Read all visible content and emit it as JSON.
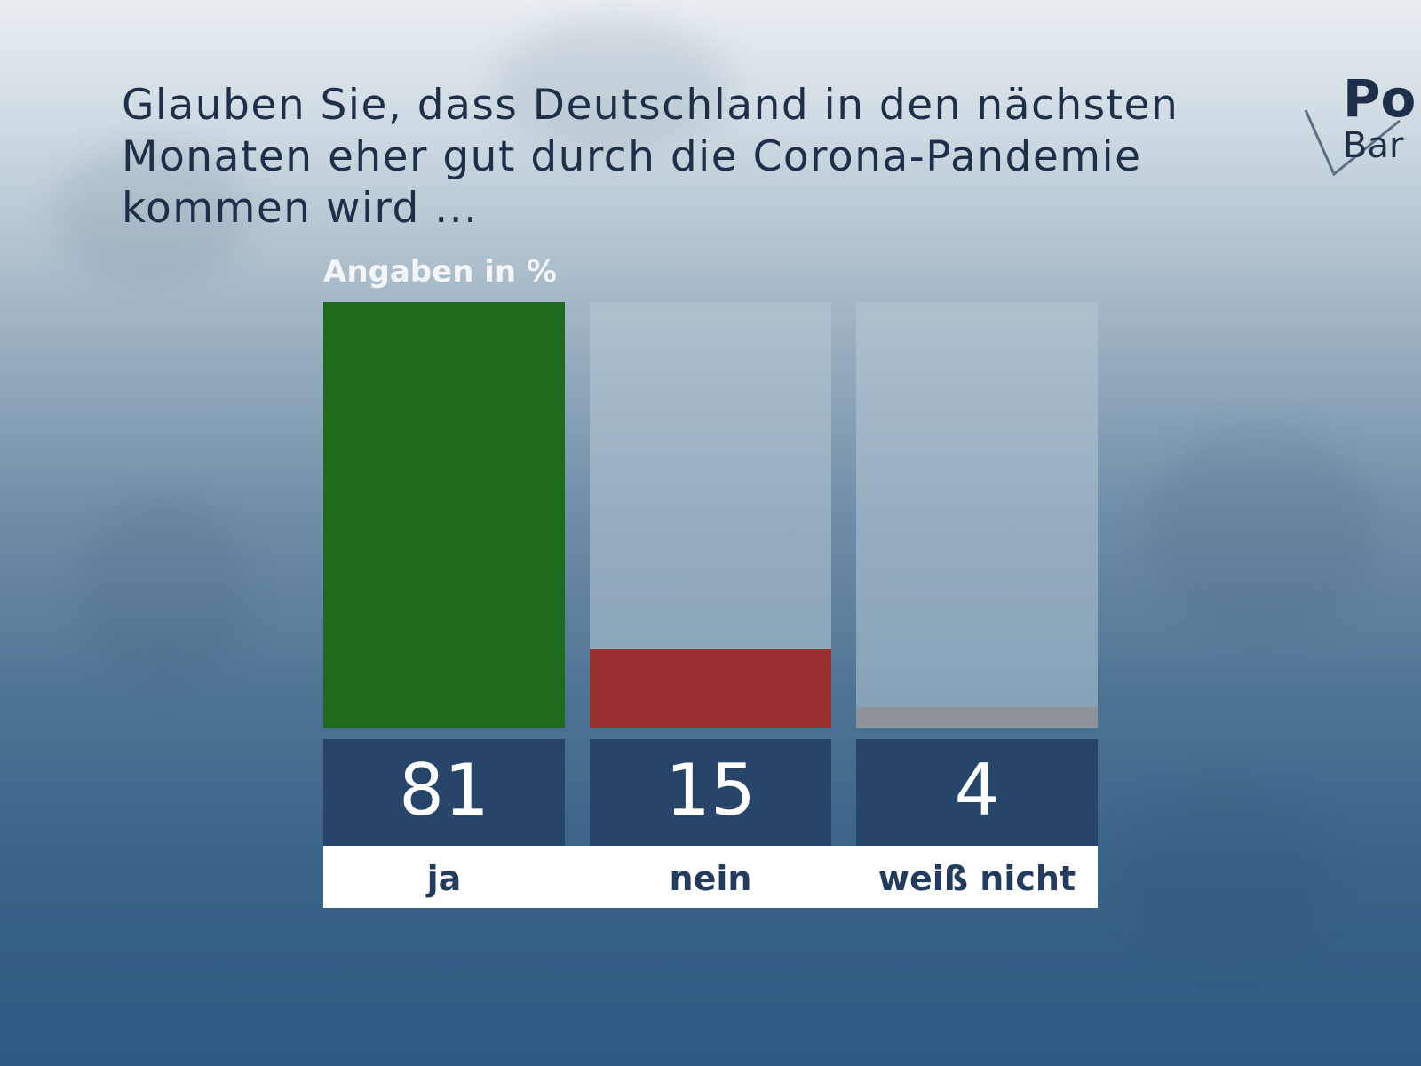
{
  "title": "Glauben Sie, dass Deutschland in den nächsten Monaten eher gut durch die Corona-Pandemie kommen wird ...",
  "logo": {
    "word1": "Po",
    "word2": "Bar"
  },
  "unit_label": "Angaben in %",
  "chart_data": {
    "type": "bar",
    "categories": [
      "ja",
      "nein",
      "weiß nicht"
    ],
    "values": [
      81,
      15,
      4
    ],
    "ylim": [
      0,
      81
    ],
    "colors": [
      "#1e6b1e",
      "#9b3030",
      "#8e9399"
    ],
    "value_box_color": "#264568",
    "value_text_color": "#ffffff",
    "category_text_color": "#233c5e",
    "track_color": "#b6c8d5"
  }
}
